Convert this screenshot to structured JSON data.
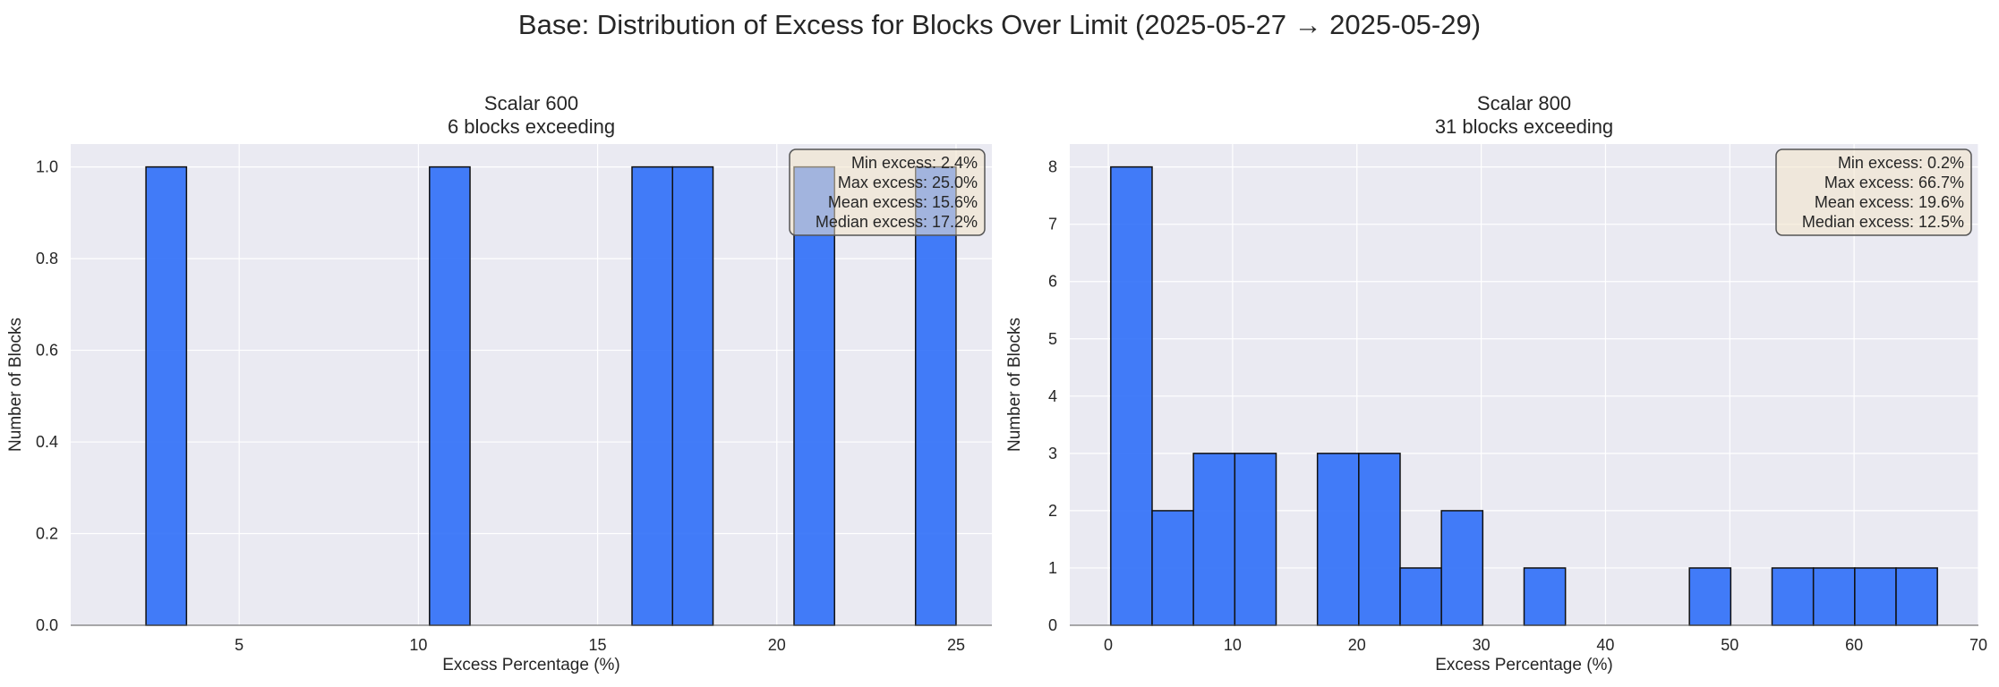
{
  "suptitle": "Base: Distribution of Excess for Blocks Over Limit (2025-05-27 → 2025-05-29)",
  "colors": {
    "bar": "#2f6ff8",
    "bar_edge": "#111111",
    "plot_bg": "#eaeaf2",
    "grid": "#ffffff",
    "stats_bg": "#f2e3c9"
  },
  "chart_data": [
    {
      "type": "bar",
      "title": "Scalar 600",
      "subtitle": "6 blocks exceeding",
      "xlabel": "Excess Percentage (%)",
      "ylabel": "Number of Blocks",
      "xlim": [
        0.3,
        26.0
      ],
      "ylim": [
        0,
        1.05
      ],
      "xticks": [
        5,
        10,
        15,
        20,
        25
      ],
      "yticks": [
        0.0,
        0.2,
        0.4,
        0.6,
        0.8,
        1.0
      ],
      "ytick_labels": [
        "0.0",
        "0.2",
        "0.4",
        "0.6",
        "0.8",
        "1.0"
      ],
      "bin_start": 2.4,
      "bin_width": 1.13,
      "counts": [
        1,
        0,
        0,
        0,
        0,
        0,
        0,
        1,
        0,
        0,
        0,
        0,
        1,
        1,
        0,
        0,
        1,
        0,
        0,
        1
      ],
      "stats": [
        "Min excess: 2.4%",
        "Max excess: 25.0%",
        "Mean excess: 15.6%",
        "Median excess: 17.2%"
      ],
      "grid": true
    },
    {
      "type": "bar",
      "title": "Scalar 800",
      "subtitle": "31 blocks exceeding",
      "xlabel": "Excess Percentage (%)",
      "ylabel": "Number of Blocks",
      "xlim": [
        -3.1,
        70
      ],
      "ylim": [
        0,
        8.4
      ],
      "xticks": [
        0,
        10,
        20,
        30,
        40,
        50,
        60,
        70
      ],
      "yticks": [
        0,
        1,
        2,
        3,
        4,
        5,
        6,
        7,
        8
      ],
      "ytick_labels": [
        "0",
        "1",
        "2",
        "3",
        "4",
        "5",
        "6",
        "7",
        "8"
      ],
      "bin_start": 0.2,
      "bin_width": 3.325,
      "counts": [
        8,
        2,
        3,
        3,
        0,
        3,
        3,
        1,
        2,
        0,
        1,
        0,
        0,
        0,
        1,
        0,
        1,
        1,
        1,
        1
      ],
      "stats": [
        "Min excess: 0.2%",
        "Max excess: 66.7%",
        "Mean excess: 19.6%",
        "Median excess: 12.5%"
      ],
      "grid": true
    }
  ]
}
